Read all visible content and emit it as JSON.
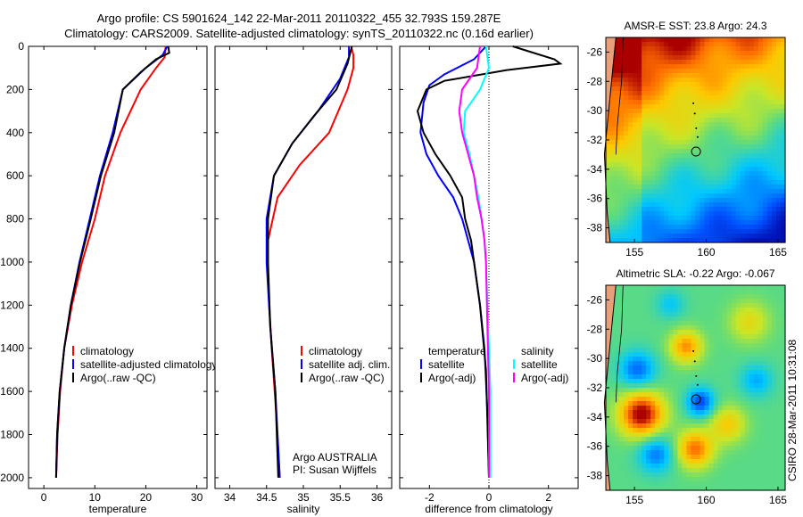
{
  "title_line1": "Argo profile: CS 5901624_142 22-Mar-2011 20110322_455 32.793S 159.287E",
  "title_line2": "Climatology: CARS2009. Satellite-adjusted climatology: synTS_20110322.nc (0.16d earlier)",
  "credit_line1": "Argo AUSTRALIA",
  "credit_line2": "PI: Susan Wijffels",
  "timestamp": "CSIRO 28-Mar-2011 10:31:08",
  "colors": {
    "climatology": "#ff0000",
    "satellite": "#0000ff",
    "argo": "#000000",
    "sat_sal": "#00ffff",
    "argo_sal": "#ff00ff",
    "land": "#e8a07a"
  },
  "chart_data": [
    {
      "type": "line",
      "xlabel": "temperature",
      "ylabel": "",
      "xlim": [
        -3,
        32
      ],
      "ylim": [
        2050,
        0
      ],
      "y_reversed": true,
      "xticks": [
        0,
        10,
        20,
        30
      ],
      "yticks": [
        0,
        200,
        400,
        600,
        800,
        1000,
        1200,
        1400,
        1600,
        1800,
        2000
      ],
      "legend": [
        "climatology",
        "satellite-adjusted climatology",
        "Argo(..raw -QC)"
      ],
      "series": [
        {
          "name": "climatology",
          "color": "climatology",
          "points": [
            [
              23.9,
              0
            ],
            [
              23.7,
              50
            ],
            [
              22,
              100
            ],
            [
              19,
              200
            ],
            [
              15,
              400
            ],
            [
              12,
              600
            ],
            [
              10,
              800
            ],
            [
              7.5,
              1000
            ],
            [
              5.5,
              1200
            ],
            [
              4,
              1400
            ],
            [
              3.2,
              1600
            ],
            [
              2.7,
              1800
            ],
            [
              2.4,
              2000
            ]
          ]
        },
        {
          "name": "satellite-adjusted climatology",
          "color": "satellite",
          "points": [
            [
              24.2,
              0
            ],
            [
              23.3,
              40
            ],
            [
              20,
              100
            ],
            [
              15.5,
              200
            ],
            [
              13.5,
              400
            ],
            [
              11,
              600
            ],
            [
              9,
              800
            ],
            [
              7,
              1000
            ],
            [
              5.3,
              1200
            ],
            [
              4,
              1400
            ],
            [
              3.1,
              1600
            ],
            [
              2.6,
              1800
            ],
            [
              2.4,
              2000
            ]
          ]
        },
        {
          "name": "Argo(..raw -QC)",
          "color": "argo",
          "points": [
            [
              24.4,
              0
            ],
            [
              24.6,
              30
            ],
            [
              22,
              60
            ],
            [
              19,
              120
            ],
            [
              15.5,
              200
            ],
            [
              13.8,
              400
            ],
            [
              11.2,
              600
            ],
            [
              9.2,
              800
            ],
            [
              7.1,
              1000
            ],
            [
              5.3,
              1200
            ],
            [
              4,
              1400
            ],
            [
              3.1,
              1600
            ],
            [
              2.6,
              1800
            ],
            [
              2.4,
              2000
            ]
          ]
        }
      ]
    },
    {
      "type": "line",
      "xlabel": "salinity",
      "ylabel": "",
      "xlim": [
        33.8,
        36.2
      ],
      "ylim": [
        2050,
        0
      ],
      "y_reversed": true,
      "xticks": [
        34,
        34.5,
        35,
        35.5,
        36
      ],
      "legend": [
        "climatology",
        "satellite adj. clim.",
        "Argo(..raw -QC)"
      ],
      "series": [
        {
          "name": "climatology",
          "color": "climatology",
          "points": [
            [
              35.65,
              0
            ],
            [
              35.68,
              40
            ],
            [
              35.68,
              100
            ],
            [
              35.6,
              200
            ],
            [
              35.35,
              400
            ],
            [
              34.95,
              550
            ],
            [
              34.65,
              700
            ],
            [
              34.52,
              900
            ],
            [
              34.52,
              1100
            ],
            [
              34.57,
              1400
            ],
            [
              34.63,
              1700
            ],
            [
              34.68,
              2000
            ]
          ]
        },
        {
          "name": "satellite adj. clim.",
          "color": "satellite",
          "points": [
            [
              35.62,
              0
            ],
            [
              35.62,
              50
            ],
            [
              35.5,
              150
            ],
            [
              35.2,
              300
            ],
            [
              34.85,
              450
            ],
            [
              34.6,
              600
            ],
            [
              34.5,
              800
            ],
            [
              34.5,
              1000
            ],
            [
              34.55,
              1300
            ],
            [
              34.62,
              1600
            ],
            [
              34.68,
              2000
            ]
          ]
        },
        {
          "name": "Argo(..raw -QC)",
          "color": "argo",
          "points": [
            [
              35.66,
              0
            ],
            [
              35.6,
              80
            ],
            [
              35.45,
              200
            ],
            [
              35.15,
              320
            ],
            [
              34.85,
              450
            ],
            [
              34.6,
              600
            ],
            [
              34.52,
              800
            ],
            [
              34.52,
              1000
            ],
            [
              34.55,
              1300
            ],
            [
              34.62,
              1600
            ],
            [
              34.66,
              2000
            ]
          ]
        }
      ]
    },
    {
      "type": "line",
      "xlabel": "difference from climatology",
      "ylabel": "",
      "xlim": [
        -3,
        3
      ],
      "ylim": [
        2050,
        0
      ],
      "y_reversed": true,
      "xticks": [
        -2,
        0,
        2
      ],
      "zero_line": 0,
      "legend_headers": [
        "temperature",
        "salinity"
      ],
      "legend": [
        "satellite",
        "Argo(-adj)",
        "satellite",
        "Argo(-adj)"
      ],
      "series": [
        {
          "name": "satellite",
          "group": "temperature",
          "color": "satellite",
          "points": [
            [
              -0.1,
              0
            ],
            [
              -0.5,
              60
            ],
            [
              -1.5,
              130
            ],
            [
              -2,
              180
            ],
            [
              -2.2,
              260
            ],
            [
              -2.3,
              400
            ],
            [
              -2.1,
              500
            ],
            [
              -1.7,
              600
            ],
            [
              -1.2,
              700
            ],
            [
              -0.9,
              800
            ],
            [
              -0.7,
              900
            ],
            [
              -0.5,
              1000
            ],
            [
              -0.3,
              1200
            ],
            [
              -0.15,
              1400
            ],
            [
              -0.05,
              1700
            ],
            [
              0,
              2000
            ]
          ]
        },
        {
          "name": "Argo(-adj)",
          "group": "temperature",
          "color": "argo",
          "points": [
            [
              0.8,
              0
            ],
            [
              2.2,
              60
            ],
            [
              2.4,
              80
            ],
            [
              0.6,
              110
            ],
            [
              -1.5,
              160
            ],
            [
              -2.1,
              200
            ],
            [
              -2.4,
              300
            ],
            [
              -2.2,
              400
            ],
            [
              -1.8,
              500
            ],
            [
              -1.3,
              600
            ],
            [
              -0.9,
              700
            ],
            [
              -0.8,
              800
            ],
            [
              -0.6,
              900
            ],
            [
              -0.5,
              1000
            ],
            [
              -0.3,
              1200
            ],
            [
              -0.1,
              1500
            ],
            [
              0,
              2000
            ]
          ]
        },
        {
          "name": "satellite",
          "group": "salinity",
          "color": "sat_sal",
          "points": [
            [
              -0.1,
              0
            ],
            [
              0,
              100
            ],
            [
              -0.3,
              200
            ],
            [
              -0.8,
              300
            ],
            [
              -0.85,
              400
            ],
            [
              -0.65,
              500
            ],
            [
              -0.5,
              600
            ],
            [
              -0.35,
              700
            ],
            [
              -0.25,
              800
            ],
            [
              -0.15,
              900
            ],
            [
              -0.1,
              1000
            ],
            [
              -0.05,
              1200
            ],
            [
              0,
              1400
            ],
            [
              0.05,
              1600
            ],
            [
              0.05,
              2000
            ]
          ]
        },
        {
          "name": "Argo(-adj)",
          "group": "salinity",
          "color": "argo_sal",
          "points": [
            [
              -0.3,
              0
            ],
            [
              -0.4,
              100
            ],
            [
              -0.9,
              200
            ],
            [
              -1,
              300
            ],
            [
              -0.9,
              400
            ],
            [
              -0.7,
              500
            ],
            [
              -0.5,
              600
            ],
            [
              -0.4,
              700
            ],
            [
              -0.25,
              800
            ],
            [
              -0.15,
              900
            ],
            [
              -0.1,
              1000
            ],
            [
              -0.05,
              1300
            ],
            [
              0,
              1600
            ],
            [
              0,
              2000
            ]
          ]
        }
      ]
    },
    {
      "type": "heatmap",
      "title": "AMSR-E SST: 23.8 Argo: 24.3",
      "xlim": [
        153,
        165.5
      ],
      "ylim": [
        -39,
        -25
      ],
      "xticks": [
        155,
        160,
        165
      ],
      "yticks": [
        -26,
        -28,
        -30,
        -32,
        -34,
        -36,
        -38
      ],
      "argo_position": [
        159.287,
        -32.793
      ],
      "field": "warm in the north and near the coast, cooling toward the southeast"
    },
    {
      "type": "heatmap",
      "title": "Altimetric SLA: -0.22 Argo: -0.067",
      "xlim": [
        153,
        165.5
      ],
      "ylim": [
        -39,
        -25
      ],
      "xticks": [
        155,
        160,
        165
      ],
      "yticks": [
        -26,
        -28,
        -30,
        -32,
        -34,
        -36,
        -38
      ],
      "argo_position": [
        159.287,
        -32.793
      ],
      "field": "mesoscale eddies, strong positive anomaly near 155E 34S, negative anomalies near 155E 31S and 159E 33S"
    }
  ]
}
